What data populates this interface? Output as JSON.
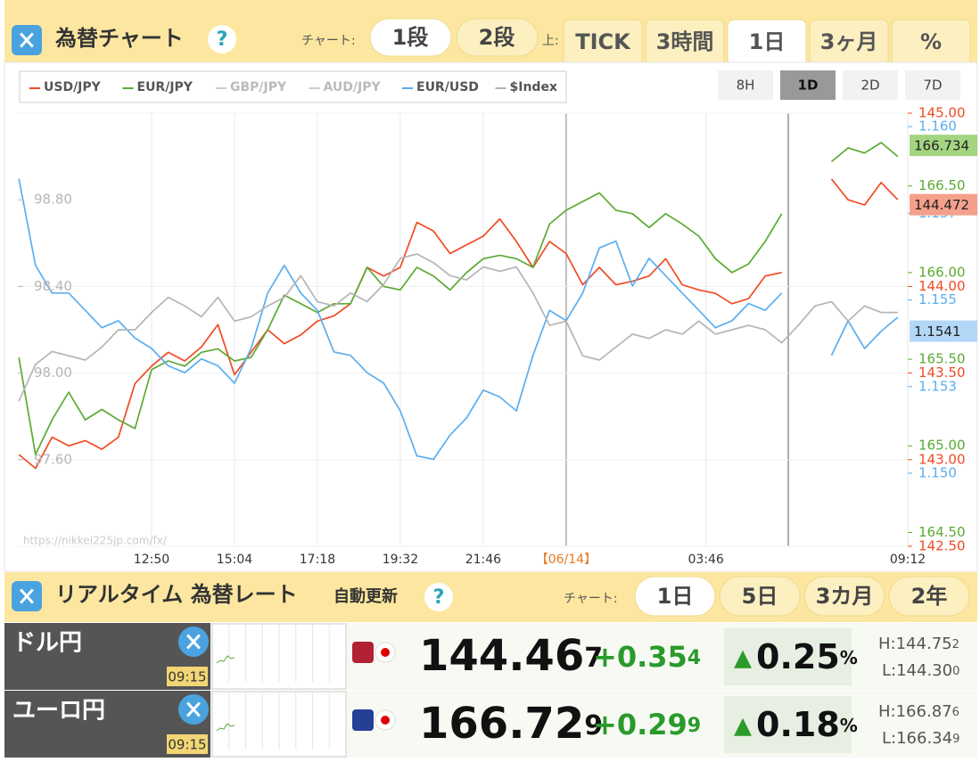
{
  "header": {
    "title": "為替チャート",
    "help": "?",
    "chart_label": "チャート:",
    "layout_tabs": [
      "1段",
      "2段"
    ],
    "layout_active": 0,
    "top_label": "上:",
    "period_tabs": [
      "TICK",
      "3時間",
      "1日",
      "3ヶ月",
      "%"
    ],
    "period_active": 2
  },
  "chart_data": {
    "type": "line",
    "range_buttons": [
      "8H",
      "1D",
      "2D",
      "7D"
    ],
    "range_active": 1,
    "watermark": "https://nikkei225jp.com/fx/",
    "xlim": [
      0,
      53.6
    ],
    "xticks": [
      {
        "value": 8,
        "label": "12:50"
      },
      {
        "value": 13,
        "label": "15:04"
      },
      {
        "value": 18,
        "label": "17:18"
      },
      {
        "value": 23,
        "label": "19:32"
      },
      {
        "value": 28,
        "label": "21:46"
      },
      {
        "value": 33,
        "label": "【06/14】"
      },
      {
        "value": 41.43,
        "label": "03:46"
      },
      {
        "value": 53.6,
        "label": "09:12"
      }
    ],
    "date_tick": 5,
    "grid": true,
    "series": [
      {
        "name": "USD/JPY",
        "color": "#f04a23",
        "axis_side": "right",
        "current": 144.472,
        "current_color": "#f5a08a",
        "ylim": [
          142.5,
          145
        ],
        "yticks": [
          {
            "value": 145,
            "label": "145.00"
          },
          {
            "value": 144,
            "label": "144.00"
          },
          {
            "value": 143.5,
            "label": "143.50"
          },
          {
            "value": 143,
            "label": "143.00"
          },
          {
            "value": 142.5,
            "label": "142.50"
          }
        ],
        "values": [
          143.03,
          142.95,
          143.13,
          143.08,
          143.11,
          143.06,
          143.13,
          143.44,
          143.54,
          143.62,
          143.57,
          143.65,
          143.78,
          143.49,
          143.62,
          143.75,
          143.67,
          143.72,
          143.8,
          143.83,
          143.9,
          144.11,
          144.06,
          144.11,
          144.37,
          144.32,
          144.19,
          144.24,
          144.29,
          144.39,
          144.26,
          144.11,
          144.26,
          144.19,
          144.01,
          144.11,
          144.01,
          144.03,
          144.06,
          144.16,
          144.01,
          143.98,
          143.96,
          143.9,
          143.93,
          144.06,
          144.08,
          null,
          null,
          144.62,
          144.5,
          144.47,
          144.6,
          144.5
        ]
      },
      {
        "name": "EUR/JPY",
        "color": "#5aaa32",
        "axis_side": "right",
        "current": 166.734,
        "current_color": "#a3d480",
        "ylim": [
          164.42,
          166.92
        ],
        "yticks": [
          {
            "value": 166.5,
            "label": "166.50"
          },
          {
            "value": 166,
            "label": "166.00"
          },
          {
            "value": 165.5,
            "label": "165.50"
          },
          {
            "value": 165,
            "label": "165.00"
          },
          {
            "value": 164.5,
            "label": "164.50"
          }
        ],
        "values": [
          165.51,
          164.95,
          165.15,
          165.31,
          165.15,
          165.21,
          165.15,
          165.1,
          165.44,
          165.49,
          165.46,
          165.54,
          165.56,
          165.49,
          165.51,
          165.67,
          165.87,
          165.82,
          165.77,
          165.82,
          165.82,
          166.03,
          165.92,
          165.9,
          166.03,
          165.98,
          165.9,
          166.0,
          166.08,
          166.1,
          166.08,
          166.03,
          166.28,
          166.36,
          166.41,
          166.46,
          166.36,
          166.34,
          166.26,
          166.34,
          166.28,
          166.21,
          166.08,
          166.0,
          166.05,
          166.18,
          166.34,
          null,
          null,
          166.64,
          166.72,
          166.69,
          166.75,
          166.67
        ]
      },
      {
        "name": "GBP/JPY",
        "color": "#cccccc",
        "visible": false
      },
      {
        "name": "AUD/JPY",
        "color": "#cccccc",
        "visible": false
      },
      {
        "name": "EUR/USD",
        "color": "#5aaef0",
        "axis_side": "right",
        "current": 1.1541,
        "current_color": "#b3d8f7",
        "ylim": [
          1.14789,
          1.16039
        ],
        "yticks": [
          {
            "value": 1.16,
            "label": "1.160"
          },
          {
            "value": 1.1575,
            "label": "1.157"
          },
          {
            "value": 1.155,
            "label": "1.155"
          },
          {
            "value": 1.1525,
            "label": "1.153"
          },
          {
            "value": 1.15,
            "label": "1.150"
          }
        ],
        "values": [
          1.1585,
          1.156,
          1.1552,
          1.1552,
          1.1547,
          1.1542,
          1.1544,
          1.1539,
          1.1536,
          1.1531,
          1.1529,
          1.1533,
          1.1531,
          1.1526,
          1.1536,
          1.1552,
          1.156,
          1.1552,
          1.1547,
          1.1535,
          1.1534,
          1.1529,
          1.1526,
          1.1518,
          1.1505,
          1.1504,
          1.1511,
          1.1516,
          1.1524,
          1.1522,
          1.1518,
          1.1534,
          1.1547,
          1.1544,
          1.1552,
          1.1565,
          1.1567,
          1.1554,
          1.1562,
          1.1557,
          1.1552,
          1.1547,
          1.1542,
          1.1544,
          1.1549,
          1.1547,
          1.1552,
          null,
          null,
          1.1534,
          1.1544,
          1.1536,
          1.1541,
          1.1545
        ]
      },
      {
        "name": "$Index",
        "color": "#b5b5b5",
        "axis_side": "left",
        "ylim": [
          97.2,
          99.2
        ],
        "yticks": [
          {
            "value": 98.8,
            "label": "98.80"
          },
          {
            "value": 98.4,
            "label": "98.40"
          },
          {
            "value": 98,
            "label": "98.00"
          },
          {
            "value": 97.6,
            "label": "97.60"
          }
        ],
        "values": [
          97.87,
          98.04,
          98.1,
          98.08,
          98.06,
          98.12,
          98.2,
          98.2,
          98.28,
          98.35,
          98.31,
          98.26,
          98.35,
          98.24,
          98.26,
          98.31,
          98.35,
          98.45,
          98.33,
          98.31,
          98.37,
          98.33,
          98.41,
          98.53,
          98.55,
          98.51,
          98.45,
          98.43,
          98.49,
          98.47,
          98.49,
          98.37,
          98.22,
          98.24,
          98.08,
          98.06,
          98.12,
          98.18,
          98.16,
          98.2,
          98.18,
          98.24,
          98.18,
          98.2,
          98.22,
          98.2,
          98.14,
          98.22,
          98.31,
          98.33,
          98.24,
          98.31,
          98.28,
          98.28
        ]
      }
    ]
  },
  "rates_header": {
    "title": "リアルタイム 為替レート",
    "auto": "自動更新",
    "help": "?",
    "chart_label": "チャート:",
    "tabs": [
      "1日",
      "5日",
      "3カ月",
      "2年"
    ],
    "active": 0
  },
  "rates": [
    {
      "name": "ドル円",
      "time": "09:15",
      "price": "144.46",
      "price_small": "7",
      "change": "+0.35",
      "change_small": "4",
      "arrow": "▲",
      "pct": "0.25",
      "pct_unit": "%",
      "high_label": "H:",
      "high": "144.75",
      "high_small": "2",
      "low_label": "L:",
      "low": "144.30",
      "low_small": "0"
    },
    {
      "name": "ユーロ円",
      "time": "09:15",
      "price": "166.72",
      "price_small": "9",
      "change": "+0.29",
      "change_small": "9",
      "arrow": "▲",
      "pct": "0.18",
      "pct_unit": "%",
      "high_label": "H:",
      "high": "166.87",
      "high_small": "6",
      "low_label": "L:",
      "low": "166.34",
      "low_small": "9"
    }
  ]
}
